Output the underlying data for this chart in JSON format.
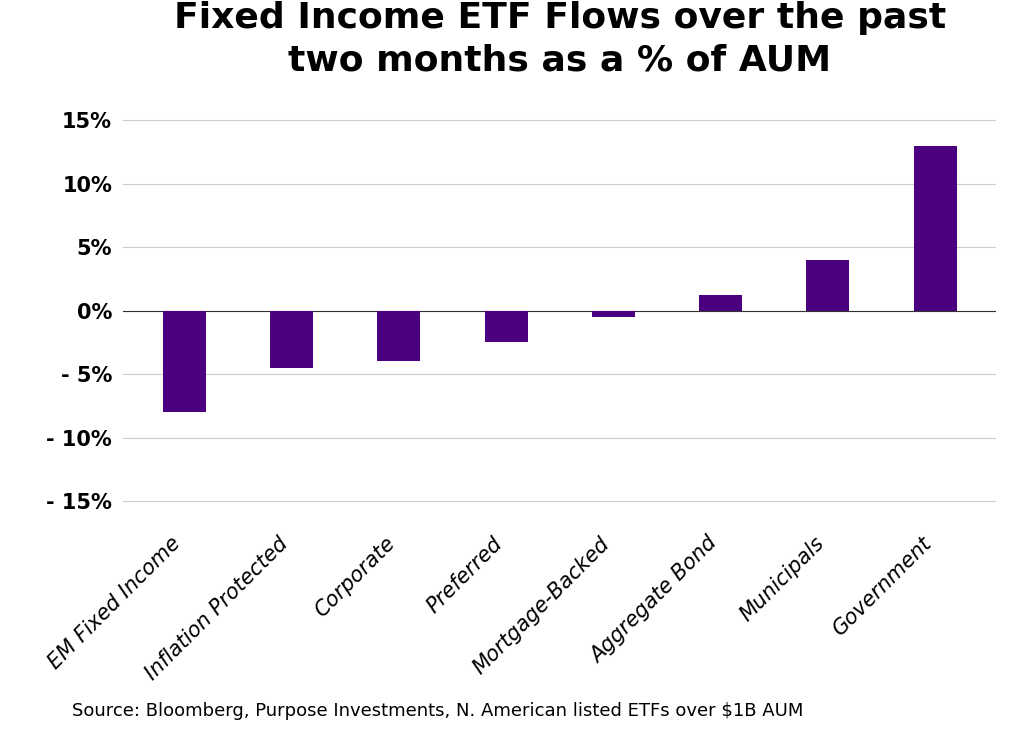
{
  "categories": [
    "EM Fixed Income",
    "Inflation Protected",
    "Corporate",
    "Preferred",
    "Mortgage-Backed",
    "Aggregate Bond",
    "Municipals",
    "Government"
  ],
  "values": [
    -8.0,
    -4.5,
    -4.0,
    -2.5,
    -0.5,
    1.2,
    4.0,
    13.0
  ],
  "bar_color": "#4B0082",
  "title_line1": "Fixed Income ETF Flows over the past",
  "title_line2": "two months as a % of AUM",
  "ylim": [
    -17,
    17
  ],
  "yticks": [
    -15,
    -10,
    -5,
    0,
    5,
    10,
    15
  ],
  "ytick_labels": [
    "- 15%",
    "- 10%",
    "- 5%",
    "0%",
    "5%",
    "10%",
    "15%"
  ],
  "source_text": "Source: Bloomberg, Purpose Investments, N. American listed ETFs over $1B AUM",
  "background_color": "#ffffff",
  "grid_color": "#cccccc",
  "title_fontsize": 26,
  "tick_fontsize": 15,
  "source_fontsize": 13,
  "bar_width": 0.4
}
